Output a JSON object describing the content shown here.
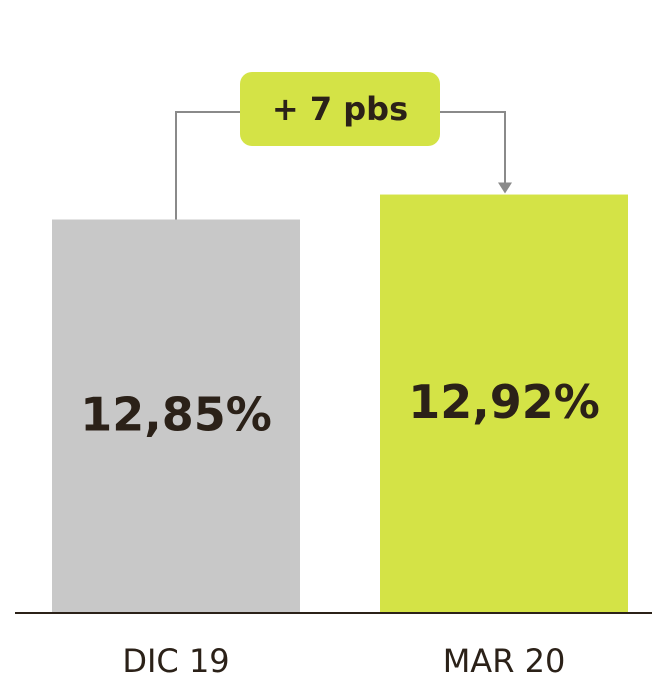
{
  "chart_data": {
    "type": "bar",
    "categories": [
      "DIC 19",
      "MAR 20"
    ],
    "values": [
      12.85,
      12.92
    ],
    "value_labels": [
      "12,85%",
      "12,92%"
    ],
    "colors": [
      "#c8c8c8",
      "#d4e346"
    ],
    "annotation": "+ 7 pbs",
    "ylim": [
      11.75,
      13.0
    ]
  }
}
